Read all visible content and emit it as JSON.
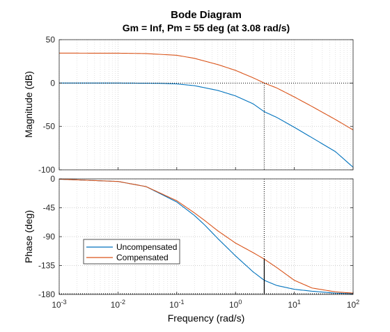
{
  "chart_data": {
    "type": "line",
    "title": "Bode Diagram",
    "subtitle": "Gm = Inf,  Pm = 55 deg (at 3.08 rad/s)",
    "xlabel": "Frequency  (rad/s)",
    "x_scale": "log",
    "xlim": [
      0.001,
      100
    ],
    "grid": true,
    "x_tick_labels": [
      {
        "base": "10",
        "exp": "-3"
      },
      {
        "base": "10",
        "exp": "-2"
      },
      {
        "base": "10",
        "exp": "-1"
      },
      {
        "base": "10",
        "exp": "0"
      },
      {
        "base": "10",
        "exp": "1"
      },
      {
        "base": "10",
        "exp": "2"
      }
    ],
    "colors": {
      "uncompensated": "#0072BD",
      "compensated": "#D95319",
      "marker": "#000000",
      "grid": "#bdbdbd"
    },
    "legend": {
      "placement": "bottom-left",
      "entries": [
        "Uncompensated",
        "Compensated"
      ]
    },
    "crossover": {
      "frequency": 3.08,
      "magnitude": 0,
      "phase_compensated": -125,
      "phase_margin_deg": 55
    },
    "magnitude_panel": {
      "ylabel": "Magnitude (dB)",
      "ylim": [
        -100,
        50
      ],
      "yticks": [
        "50",
        "0",
        "-50",
        "-100"
      ],
      "series": [
        {
          "name": "Uncompensated",
          "x": [
            0.001,
            0.01,
            0.05,
            0.1,
            0.2,
            0.5,
            1,
            2,
            3.08,
            5,
            10,
            20,
            50,
            100
          ],
          "values": [
            0,
            0,
            -0.3,
            -1,
            -3,
            -8.5,
            -14.8,
            -24,
            -33,
            -39.5,
            -51,
            -63,
            -79,
            -97
          ]
        },
        {
          "name": "Compensated",
          "x": [
            0.001,
            0.01,
            0.03,
            0.1,
            0.2,
            0.5,
            1,
            2,
            3.08,
            5,
            10,
            20,
            50,
            100
          ],
          "values": [
            34.5,
            34.4,
            34,
            32,
            28.5,
            21.3,
            14.6,
            6,
            0,
            -5.6,
            -16,
            -27,
            -42,
            -54
          ]
        }
      ]
    },
    "phase_panel": {
      "ylabel": "Phase (deg)",
      "ylim": [
        -180,
        0
      ],
      "yticks": [
        "0",
        "-45",
        "-90",
        "-135",
        "-180"
      ],
      "series": [
        {
          "name": "Uncompensated",
          "x": [
            0.001,
            0.01,
            0.03,
            0.1,
            0.2,
            0.3,
            0.5,
            1,
            2,
            3.08,
            5,
            10,
            20,
            50,
            100
          ],
          "values": [
            -0.5,
            -4,
            -12,
            -36,
            -57,
            -72,
            -93,
            -120,
            -145,
            -158,
            -166,
            -172,
            -175,
            -178,
            -179
          ]
        },
        {
          "name": "Compensated",
          "x": [
            0.001,
            0.01,
            0.03,
            0.1,
            0.2,
            0.3,
            0.5,
            1,
            2,
            3.08,
            5,
            10,
            20,
            50,
            100
          ],
          "values": [
            -0.5,
            -4,
            -12,
            -34,
            -53,
            -65,
            -81,
            -100,
            -115,
            -125,
            -138,
            -158,
            -170,
            -176,
            -178
          ]
        }
      ]
    }
  }
}
